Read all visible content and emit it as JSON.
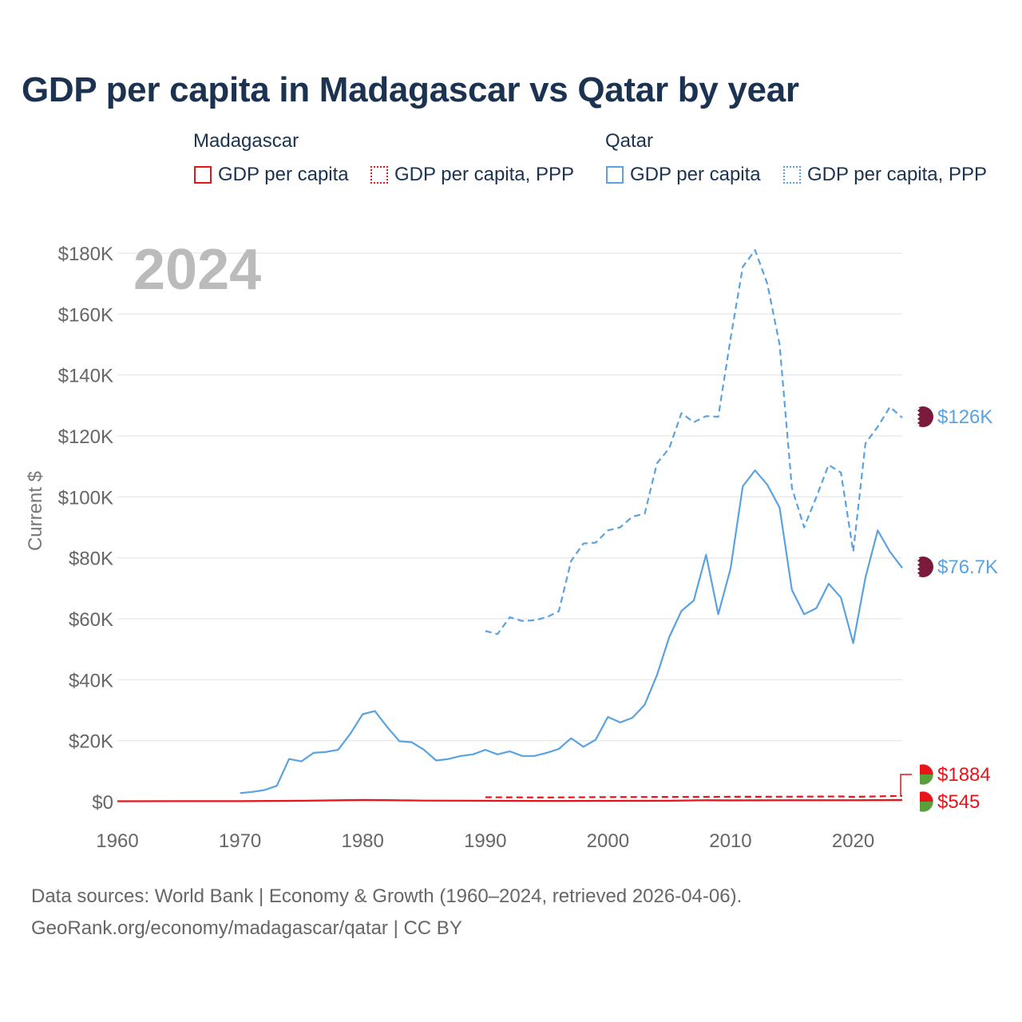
{
  "title": "GDP per capita in Madagascar vs Qatar by year",
  "legend": {
    "groups": [
      {
        "country": "Madagascar",
        "items": [
          "GDP per capita",
          "GDP per capita, PPP"
        ]
      },
      {
        "country": "Qatar",
        "items": [
          "GDP per capita",
          "GDP per capita, PPP"
        ]
      }
    ]
  },
  "year_watermark": "2024",
  "footer": {
    "line1": "Data sources: World Bank | Economy & Growth (1960–2024, retrieved 2026-04-06).",
    "line2": "GeoRank.org/economy/madagascar/qatar | CC BY"
  },
  "colors": {
    "madagascar": "#e8141a",
    "qatar": "#5aa2e0",
    "title": "#1b3350",
    "grid": "#e6e6e6",
    "axis_text": "#666666"
  },
  "chart_data": {
    "type": "line",
    "title": "GDP per capita in Madagascar vs Qatar by year",
    "xlabel": "",
    "ylabel": "Current $",
    "xlim": [
      1960,
      2024
    ],
    "ylim": [
      0,
      180000
    ],
    "x_ticks": [
      1960,
      1970,
      1980,
      1990,
      2000,
      2010,
      2020
    ],
    "y_ticks": [
      0,
      20000,
      40000,
      60000,
      80000,
      100000,
      120000,
      140000,
      160000,
      180000
    ],
    "y_tick_labels": [
      "$0",
      "$20K",
      "$40K",
      "$60K",
      "$80K",
      "$100K",
      "$120K",
      "$140K",
      "$160K",
      "$180K"
    ],
    "series": [
      {
        "name": "Qatar GDP per capita, PPP",
        "country": "Qatar",
        "style": "dashed",
        "color": "#5aa2e0",
        "end_label": "$126K",
        "points": [
          [
            1990,
            56000
          ],
          [
            1991,
            55000
          ],
          [
            1992,
            60500
          ],
          [
            1993,
            59300
          ],
          [
            1994,
            59500
          ],
          [
            1995,
            60500
          ],
          [
            1996,
            62500
          ],
          [
            1997,
            79000
          ],
          [
            1998,
            84700
          ],
          [
            1999,
            85000
          ],
          [
            2000,
            89000
          ],
          [
            2001,
            90000
          ],
          [
            2002,
            93500
          ],
          [
            2003,
            94500
          ],
          [
            2004,
            111000
          ],
          [
            2005,
            116000
          ],
          [
            2006,
            127500
          ],
          [
            2007,
            124500
          ],
          [
            2008,
            126500
          ],
          [
            2009,
            126300
          ],
          [
            2010,
            152000
          ],
          [
            2011,
            175500
          ],
          [
            2012,
            181000
          ],
          [
            2013,
            170000
          ],
          [
            2014,
            150000
          ],
          [
            2015,
            103000
          ],
          [
            2016,
            90000
          ],
          [
            2017,
            100000
          ],
          [
            2018,
            110500
          ],
          [
            2019,
            108000
          ],
          [
            2020,
            82000
          ],
          [
            2021,
            117500
          ],
          [
            2022,
            123000
          ],
          [
            2023,
            129500
          ],
          [
            2024,
            126000
          ]
        ]
      },
      {
        "name": "Qatar GDP per capita",
        "country": "Qatar",
        "style": "solid",
        "color": "#5aa2e0",
        "end_label": "$76.7K",
        "points": [
          [
            1970,
            2800
          ],
          [
            1971,
            3200
          ],
          [
            1972,
            3800
          ],
          [
            1973,
            5200
          ],
          [
            1974,
            14000
          ],
          [
            1975,
            13200
          ],
          [
            1976,
            16000
          ],
          [
            1977,
            16300
          ],
          [
            1978,
            17000
          ],
          [
            1979,
            22300
          ],
          [
            1980,
            28700
          ],
          [
            1981,
            29700
          ],
          [
            1982,
            24500
          ],
          [
            1983,
            19800
          ],
          [
            1984,
            19500
          ],
          [
            1985,
            17000
          ],
          [
            1986,
            13500
          ],
          [
            1987,
            14000
          ],
          [
            1988,
            15000
          ],
          [
            1989,
            15500
          ],
          [
            1990,
            17000
          ],
          [
            1991,
            15500
          ],
          [
            1992,
            16500
          ],
          [
            1993,
            15000
          ],
          [
            1994,
            15000
          ],
          [
            1995,
            16000
          ],
          [
            1996,
            17300
          ],
          [
            1997,
            20800
          ],
          [
            1998,
            18000
          ],
          [
            1999,
            20300
          ],
          [
            2000,
            27800
          ],
          [
            2001,
            26000
          ],
          [
            2002,
            27500
          ],
          [
            2003,
            31800
          ],
          [
            2004,
            41500
          ],
          [
            2005,
            54000
          ],
          [
            2006,
            62600
          ],
          [
            2007,
            66000
          ],
          [
            2008,
            81000
          ],
          [
            2009,
            61500
          ],
          [
            2010,
            76500
          ],
          [
            2011,
            103500
          ],
          [
            2012,
            108700
          ],
          [
            2013,
            104000
          ],
          [
            2014,
            96500
          ],
          [
            2015,
            69500
          ],
          [
            2016,
            61500
          ],
          [
            2017,
            63500
          ],
          [
            2018,
            71500
          ],
          [
            2019,
            67000
          ],
          [
            2020,
            52000
          ],
          [
            2021,
            73500
          ],
          [
            2022,
            89000
          ],
          [
            2023,
            82000
          ],
          [
            2024,
            76700
          ]
        ]
      },
      {
        "name": "Madagascar GDP per capita, PPP",
        "country": "Madagascar",
        "style": "dashed",
        "color": "#e8141a",
        "end_label": "$1884",
        "points": [
          [
            1990,
            1450
          ],
          [
            1995,
            1350
          ],
          [
            2000,
            1500
          ],
          [
            2005,
            1550
          ],
          [
            2010,
            1600
          ],
          [
            2015,
            1620
          ],
          [
            2019,
            1700
          ],
          [
            2020,
            1580
          ],
          [
            2021,
            1650
          ],
          [
            2022,
            1720
          ],
          [
            2023,
            1800
          ],
          [
            2024,
            1884
          ]
        ]
      },
      {
        "name": "Madagascar GDP per capita",
        "country": "Madagascar",
        "style": "solid",
        "color": "#e8141a",
        "end_label": "$545",
        "points": [
          [
            1960,
            130
          ],
          [
            1965,
            150
          ],
          [
            1970,
            160
          ],
          [
            1975,
            300
          ],
          [
            1980,
            560
          ],
          [
            1982,
            500
          ],
          [
            1985,
            330
          ],
          [
            1990,
            300
          ],
          [
            1995,
            230
          ],
          [
            2000,
            250
          ],
          [
            2005,
            300
          ],
          [
            2008,
            480
          ],
          [
            2010,
            430
          ],
          [
            2015,
            460
          ],
          [
            2020,
            480
          ],
          [
            2024,
            545
          ]
        ]
      }
    ]
  }
}
